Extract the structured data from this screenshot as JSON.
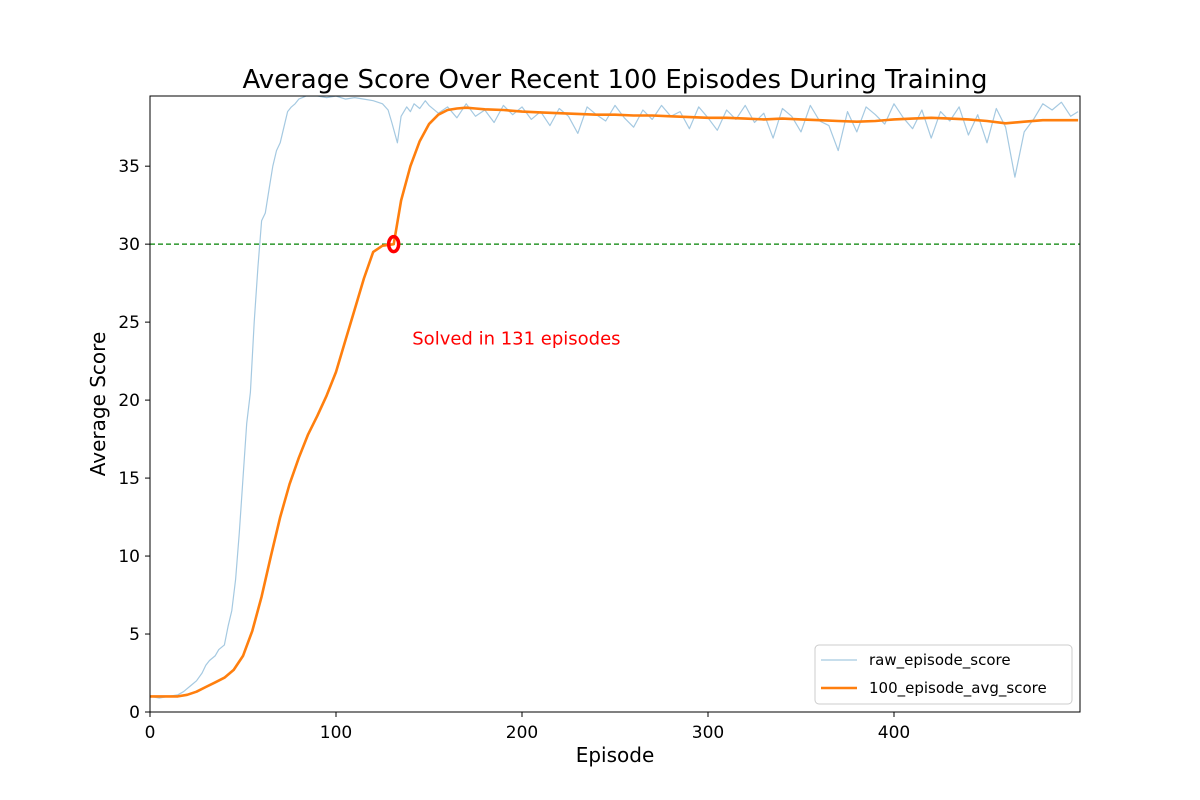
{
  "chart_data": {
    "type": "line",
    "title": "Average Score Over Recent 100 Episodes During Training",
    "xlabel": "Episode",
    "ylabel": "Average Score",
    "xlim": [
      0,
      500
    ],
    "ylim": [
      0,
      39.5
    ],
    "xticks": [
      0,
      100,
      200,
      300,
      400
    ],
    "yticks": [
      0,
      5,
      10,
      15,
      20,
      25,
      30,
      35
    ],
    "grid": false,
    "legend_position": "lower-right",
    "threshold": {
      "y": 30,
      "color": "#008000",
      "style": "dashed"
    },
    "marker": {
      "x": 131,
      "y": 30,
      "color": "#ff0000"
    },
    "annotation": {
      "text": "Solved in 131 episodes",
      "x": 141,
      "y": 24,
      "color": "#ff0000"
    },
    "series": [
      {
        "name": "raw_episode_score",
        "color": "#1f77b4",
        "alpha": 0.4,
        "x": [
          0,
          5,
          10,
          15,
          18,
          20,
          22,
          25,
          28,
          30,
          32,
          35,
          37,
          40,
          42,
          44,
          46,
          48,
          50,
          52,
          54,
          56,
          58,
          60,
          62,
          64,
          66,
          68,
          70,
          72,
          74,
          76,
          78,
          80,
          82,
          84,
          86,
          88,
          90,
          95,
          100,
          105,
          110,
          115,
          120,
          125,
          128,
          130,
          133,
          135,
          138,
          140,
          142,
          145,
          148,
          150,
          155,
          160,
          165,
          170,
          175,
          180,
          185,
          190,
          195,
          200,
          205,
          210,
          215,
          220,
          225,
          230,
          235,
          240,
          245,
          250,
          255,
          260,
          265,
          270,
          275,
          280,
          285,
          290,
          295,
          300,
          305,
          310,
          315,
          320,
          325,
          330,
          335,
          340,
          345,
          350,
          355,
          360,
          365,
          370,
          375,
          380,
          385,
          390,
          395,
          400,
          405,
          410,
          415,
          420,
          425,
          430,
          435,
          440,
          445,
          450,
          455,
          460,
          465,
          470,
          475,
          480,
          485,
          490,
          495,
          499
        ],
        "y": [
          1.0,
          0.9,
          1.0,
          1.1,
          1.3,
          1.5,
          1.7,
          2.0,
          2.5,
          3.0,
          3.3,
          3.6,
          4.0,
          4.3,
          5.5,
          6.5,
          8.5,
          11.5,
          15.0,
          18.5,
          20.5,
          25.0,
          28.5,
          31.5,
          32.0,
          33.5,
          35.0,
          36.0,
          36.5,
          37.5,
          38.5,
          38.8,
          39.0,
          39.3,
          39.4,
          39.5,
          39.5,
          39.5,
          39.5,
          39.4,
          39.5,
          39.3,
          39.4,
          39.3,
          39.2,
          39.0,
          38.6,
          37.8,
          36.5,
          38.2,
          38.8,
          38.5,
          39.0,
          38.7,
          39.2,
          38.9,
          38.4,
          38.8,
          38.1,
          39.0,
          38.2,
          38.6,
          37.8,
          38.9,
          38.3,
          38.8,
          38.0,
          38.5,
          37.6,
          38.7,
          38.2,
          37.1,
          38.8,
          38.3,
          37.9,
          38.9,
          38.1,
          37.5,
          38.6,
          38.0,
          38.9,
          38.2,
          38.5,
          37.4,
          38.8,
          38.1,
          37.3,
          38.6,
          38.0,
          38.9,
          37.8,
          38.4,
          36.8,
          38.7,
          38.2,
          37.2,
          38.9,
          37.9,
          37.6,
          36.0,
          38.5,
          37.2,
          38.8,
          38.3,
          37.7,
          39.0,
          38.1,
          37.4,
          38.6,
          36.8,
          38.5,
          37.9,
          38.8,
          37.0,
          38.3,
          36.5,
          38.7,
          37.5,
          34.3,
          37.2,
          38.0,
          39.0,
          38.6,
          39.1,
          38.2,
          38.5
        ]
      },
      {
        "name": "100_episode_avg_score",
        "color": "#ff7f0e",
        "alpha": 1.0,
        "x": [
          0,
          5,
          10,
          15,
          20,
          25,
          30,
          35,
          40,
          45,
          50,
          55,
          60,
          65,
          70,
          75,
          80,
          85,
          90,
          95,
          100,
          105,
          110,
          115,
          120,
          125,
          131,
          135,
          140,
          145,
          150,
          155,
          160,
          165,
          170,
          175,
          180,
          190,
          200,
          210,
          220,
          230,
          240,
          250,
          260,
          270,
          280,
          290,
          300,
          310,
          320,
          330,
          340,
          350,
          360,
          370,
          380,
          390,
          400,
          410,
          420,
          430,
          440,
          450,
          460,
          470,
          480,
          490,
          499
        ],
        "y": [
          1.0,
          1.0,
          1.0,
          1.0,
          1.1,
          1.3,
          1.6,
          1.9,
          2.2,
          2.7,
          3.6,
          5.2,
          7.4,
          10.0,
          12.5,
          14.6,
          16.3,
          17.8,
          19.0,
          20.3,
          21.8,
          23.8,
          25.8,
          27.8,
          29.5,
          29.9,
          30.0,
          32.8,
          35.0,
          36.6,
          37.7,
          38.3,
          38.6,
          38.7,
          38.75,
          38.7,
          38.65,
          38.6,
          38.5,
          38.45,
          38.4,
          38.35,
          38.3,
          38.3,
          38.25,
          38.25,
          38.2,
          38.15,
          38.1,
          38.1,
          38.05,
          38.0,
          38.05,
          38.0,
          37.95,
          37.9,
          37.85,
          37.9,
          38.0,
          38.05,
          38.1,
          38.05,
          38.0,
          37.9,
          37.75,
          37.85,
          37.95,
          37.95,
          37.95
        ]
      }
    ]
  }
}
